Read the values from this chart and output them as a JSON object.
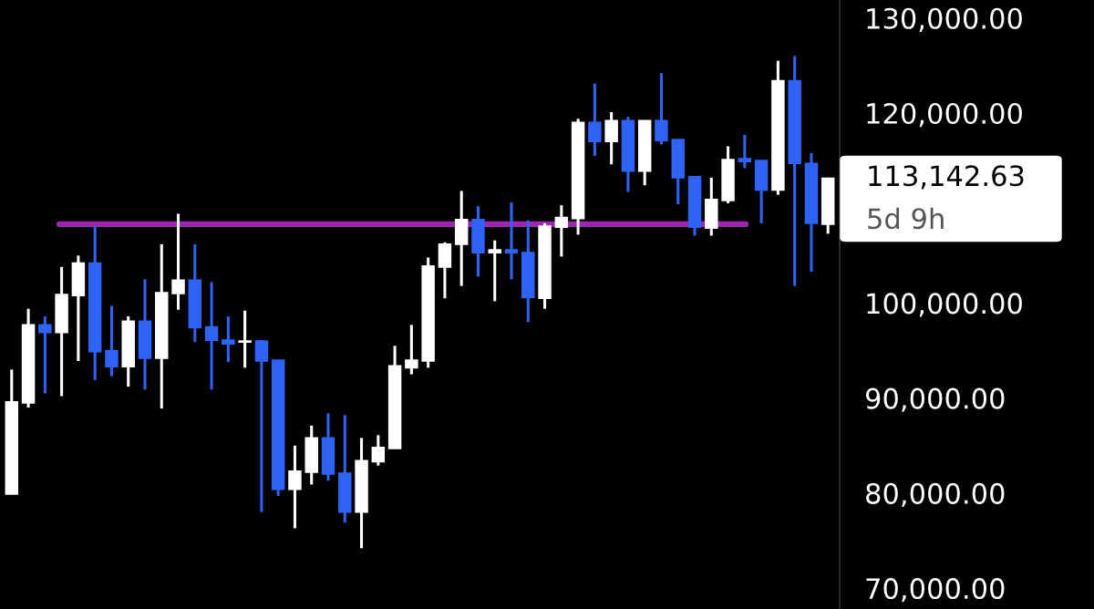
{
  "chart_data": {
    "type": "candlestick",
    "categories": [
      null,
      null,
      null,
      null,
      null,
      null,
      null,
      null,
      null,
      null,
      null,
      null,
      null,
      null,
      null,
      null,
      null,
      null,
      null,
      null,
      null,
      null,
      null,
      null,
      null,
      null,
      null,
      null,
      null,
      null,
      null,
      null,
      null,
      null,
      null,
      null,
      null,
      null,
      null,
      null,
      null,
      null,
      null,
      null,
      null,
      null,
      null,
      null,
      null,
      null
    ],
    "ohlc": [
      [
        79900,
        93000,
        79900,
        89600
      ],
      [
        89500,
        99400,
        89000,
        97700
      ],
      [
        97700,
        98600,
        90500,
        96900
      ],
      [
        96900,
        103800,
        90200,
        100900
      ],
      [
        100800,
        105000,
        93900,
        104200
      ],
      [
        104200,
        108100,
        91900,
        94900
      ],
      [
        95000,
        99700,
        92300,
        93300
      ],
      [
        93300,
        98600,
        91200,
        98100
      ],
      [
        98100,
        102500,
        90900,
        94200
      ],
      [
        94200,
        106200,
        88900,
        101100
      ],
      [
        101000,
        109400,
        99300,
        102400
      ],
      [
        102400,
        106200,
        95900,
        97400
      ],
      [
        97500,
        102200,
        90900,
        96100
      ],
      [
        96100,
        98600,
        93800,
        95700
      ],
      [
        95900,
        99200,
        93200,
        96000
      ],
      [
        96000,
        96100,
        78000,
        93900
      ],
      [
        94000,
        94000,
        79700,
        80400
      ],
      [
        80400,
        85000,
        76300,
        82300
      ],
      [
        82200,
        87100,
        80900,
        85800
      ],
      [
        85800,
        88400,
        81300,
        82000
      ],
      [
        82100,
        88200,
        76900,
        78000
      ],
      [
        78000,
        85800,
        74200,
        83400
      ],
      [
        83300,
        86100,
        82900,
        84800
      ],
      [
        84700,
        95500,
        84700,
        93400
      ],
      [
        93200,
        97700,
        92500,
        94000
      ],
      [
        93900,
        104800,
        93200,
        103900
      ],
      [
        103800,
        106400,
        100500,
        106200
      ],
      [
        106200,
        111800,
        101800,
        108800
      ],
      [
        108800,
        110200,
        102800,
        105300
      ],
      [
        105300,
        106600,
        100200,
        105600
      ],
      [
        105600,
        110600,
        102500,
        105300
      ],
      [
        105300,
        108700,
        98000,
        100600
      ],
      [
        100500,
        108400,
        99400,
        108100
      ],
      [
        108000,
        110300,
        104900,
        109000
      ],
      [
        108900,
        119400,
        107200,
        119000
      ],
      [
        119000,
        123100,
        115500,
        117000
      ],
      [
        117000,
        120100,
        114600,
        119200
      ],
      [
        119200,
        119600,
        111700,
        113900
      ],
      [
        113900,
        119200,
        112400,
        119200
      ],
      [
        119200,
        124200,
        116700,
        117100
      ],
      [
        117200,
        117200,
        110400,
        113200
      ],
      [
        113300,
        113300,
        107100,
        108000
      ],
      [
        107900,
        113200,
        107100,
        110900
      ],
      [
        110800,
        116500,
        110500,
        115100
      ],
      [
        115200,
        117700,
        114200,
        114900
      ],
      [
        115000,
        115000,
        108400,
        111900
      ],
      [
        111900,
        125500,
        111400,
        123400
      ],
      [
        123400,
        126000,
        101800,
        114700
      ],
      [
        114700,
        115800,
        103300,
        108400
      ],
      [
        108300,
        113200,
        107300,
        113142.63
      ]
    ],
    "colors": [
      "#ffffff",
      "#ffffff",
      "#2f63f5",
      "#ffffff",
      "#ffffff",
      "#2f63f5",
      "#2f63f5",
      "#ffffff",
      "#2f63f5",
      "#ffffff",
      "#ffffff",
      "#2f63f5",
      "#2f63f5",
      "#2f63f5",
      "#ffffff",
      "#2f63f5",
      "#2f63f5",
      "#ffffff",
      "#ffffff",
      "#2f63f5",
      "#2f63f5",
      "#ffffff",
      "#ffffff",
      "#ffffff",
      "#ffffff",
      "#ffffff",
      "#ffffff",
      "#ffffff",
      "#2f63f5",
      "#ffffff",
      "#2f63f5",
      "#2f63f5",
      "#ffffff",
      "#ffffff",
      "#ffffff",
      "#2f63f5",
      "#ffffff",
      "#2f63f5",
      "#ffffff",
      "#2f63f5",
      "#2f63f5",
      "#2f63f5",
      "#ffffff",
      "#ffffff",
      "#2f63f5",
      "#2f63f5",
      "#ffffff",
      "#2f63f5",
      "#2f63f5",
      "#ffffff"
    ],
    "ylim": [
      67800,
      131900
    ],
    "yticks": [
      {
        "value": 70000,
        "label": "70,000.00"
      },
      {
        "value": 80000,
        "label": "80,000.00"
      },
      {
        "value": 90000,
        "label": "90,000.00"
      },
      {
        "value": 100000,
        "label": "100,000.00"
      },
      {
        "value": 120000,
        "label": "120,000.00"
      },
      {
        "value": 130000,
        "label": "130,000.00"
      }
    ],
    "tick_labels": "y",
    "grid": false,
    "ref_lines": [
      {
        "axis": "y",
        "value": 108300,
        "color": "#9c27b0",
        "label": null
      }
    ],
    "annotations": [
      "113,142.63",
      "5d 9h"
    ]
  }
}
